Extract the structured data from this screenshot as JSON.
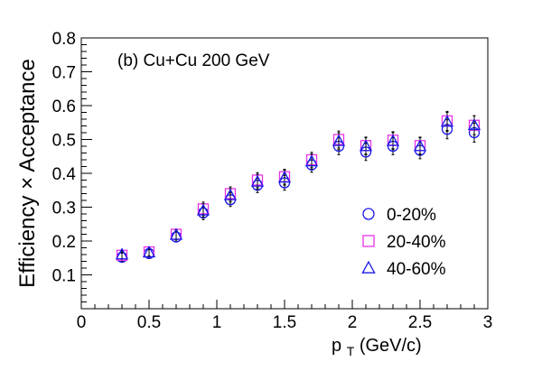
{
  "chart_data": {
    "type": "scatter",
    "annotation": "(b) Cu+Cu 200 GeV",
    "xlabel": "p_T (GeV/c)",
    "xlabel_main": "p",
    "xlabel_sub": "T",
    "xlabel_rest": " (GeV/c)",
    "ylabel": "Efficiency × Acceptance",
    "xlim": [
      0,
      3
    ],
    "ylim": [
      0,
      0.8
    ],
    "x_ticks": [
      0,
      0.5,
      1,
      1.5,
      2,
      2.5,
      3
    ],
    "y_ticks": [
      0.1,
      0.2,
      0.3,
      0.4,
      0.5,
      0.6,
      0.7,
      0.8
    ],
    "x_tick_labels": [
      "0",
      "0.5",
      "1",
      "1.5",
      "2",
      "2.5",
      "3"
    ],
    "y_tick_labels": [
      "0.1",
      "0.2",
      "0.3",
      "0.4",
      "0.5",
      "0.6",
      "0.7",
      "0.8"
    ],
    "grid": false,
    "legend_position": "right",
    "x": [
      0.3,
      0.5,
      0.7,
      0.9,
      1.1,
      1.3,
      1.5,
      1.7,
      1.9,
      2.1,
      2.3,
      2.5,
      2.7,
      2.9
    ],
    "series": [
      {
        "name": "0-20%",
        "marker": "circle",
        "color": "#1a1ae6",
        "values": [
          0.152,
          0.163,
          0.212,
          0.283,
          0.322,
          0.365,
          0.372,
          0.425,
          0.48,
          0.463,
          0.48,
          0.468,
          0.53,
          0.52
        ],
        "errors": [
          0.012,
          0.012,
          0.015,
          0.02,
          0.02,
          0.022,
          0.022,
          0.022,
          0.025,
          0.025,
          0.025,
          0.025,
          0.028,
          0.028
        ]
      },
      {
        "name": "20-40%",
        "marker": "square",
        "color": "#e633e6",
        "values": [
          0.158,
          0.168,
          0.22,
          0.295,
          0.34,
          0.38,
          0.39,
          0.44,
          0.5,
          0.482,
          0.498,
          0.482,
          0.555,
          0.542
        ],
        "errors": [
          0.012,
          0.012,
          0.015,
          0.02,
          0.02,
          0.022,
          0.022,
          0.022,
          0.025,
          0.025,
          0.025,
          0.025,
          0.028,
          0.028
        ]
      },
      {
        "name": "40-60%",
        "marker": "triangle",
        "color": "#1a1ae6",
        "values": [
          0.16,
          0.166,
          0.218,
          0.29,
          0.335,
          0.375,
          0.387,
          0.435,
          0.495,
          0.48,
          0.495,
          0.48,
          0.552,
          0.542
        ],
        "errors": [
          0.012,
          0.012,
          0.015,
          0.02,
          0.02,
          0.022,
          0.022,
          0.022,
          0.025,
          0.025,
          0.025,
          0.025,
          0.028,
          0.028
        ]
      }
    ]
  }
}
